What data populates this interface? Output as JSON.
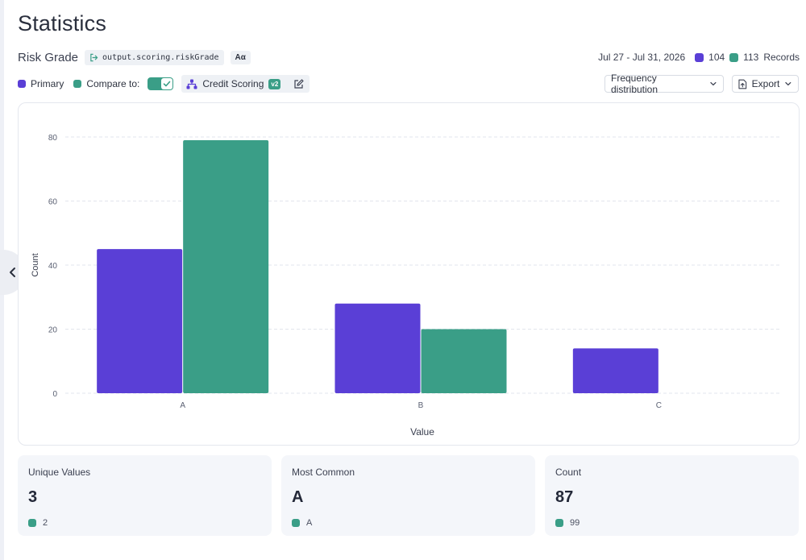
{
  "page": {
    "title": "Statistics"
  },
  "field": {
    "name": "Risk Grade",
    "path": "output.scoring.riskGrade",
    "type_label": "Aα"
  },
  "summary": {
    "date_range": "Jul 27 - Jul 31, 2026",
    "primary_records": "104",
    "compare_records": "113",
    "records_label": "Records"
  },
  "legend": {
    "primary_label": "Primary",
    "compare_label": "Compare to:",
    "compare_enabled": true,
    "model_name": "Credit Scoring",
    "model_version": "v2"
  },
  "controls": {
    "view_select": "Frequency distribution",
    "export_label": "Export"
  },
  "colors": {
    "primary": "#5a3fd6",
    "compare": "#3a9e87"
  },
  "icons": {
    "path": "arrow-right-from-bracket-icon",
    "model": "hierarchy-icon",
    "edit": "edit-icon",
    "chevron": "chevron-down-icon",
    "export": "file-export-icon",
    "collapse": "chevron-left-icon"
  },
  "chart_data": {
    "type": "bar",
    "categories": [
      "A",
      "B",
      "C"
    ],
    "series": [
      {
        "name": "Primary",
        "values": [
          45,
          28,
          14
        ]
      },
      {
        "name": "Compare",
        "values": [
          79,
          20,
          0
        ]
      }
    ],
    "xlabel": "Value",
    "ylabel": "Count",
    "ylim": [
      0,
      80
    ],
    "yticks": [
      0,
      20,
      40,
      60,
      80
    ],
    "grid": true
  },
  "stats": [
    {
      "label": "Unique Values",
      "value": "3",
      "compare_value": "2"
    },
    {
      "label": "Most Common",
      "value": "A",
      "compare_value": "A"
    },
    {
      "label": "Count",
      "value": "87",
      "compare_value": "99"
    }
  ]
}
